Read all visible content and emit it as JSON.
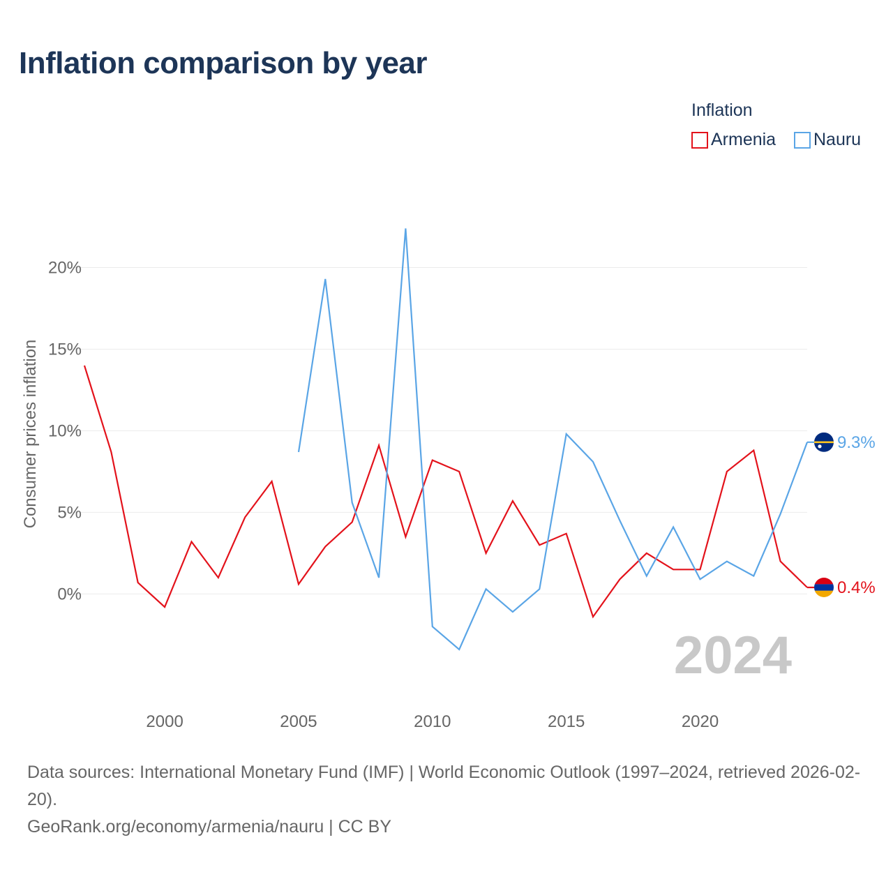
{
  "title": "Inflation comparison by year",
  "legend": {
    "title": "Inflation",
    "items": [
      {
        "label": "Armenia",
        "color": "#e3121b"
      },
      {
        "label": "Nauru",
        "color": "#5aa5e6"
      }
    ]
  },
  "current_year": "2024",
  "footer": {
    "sources": "Data sources: International Monetary Fund (IMF) | World Economic Outlook (1997–2024, retrieved 2026-02-20).",
    "attribution": "GeoRank.org/economy/armenia/nauru | CC BY"
  },
  "chart_data": {
    "type": "line",
    "title": "Inflation comparison by year",
    "xlabel": "",
    "ylabel": "Consumer prices inflation",
    "xlim": [
      1997,
      2024
    ],
    "ylim": [
      -5.5,
      24
    ],
    "x_ticks": [
      2000,
      2005,
      2010,
      2015,
      2020
    ],
    "y_ticks": [
      0,
      5,
      10,
      15,
      20
    ],
    "y_tick_labels": [
      "0%",
      "5%",
      "10%",
      "15%",
      "20%"
    ],
    "grid": true,
    "legend_position": "top-right",
    "series": [
      {
        "name": "Armenia",
        "color": "#e3121b",
        "flag_icon": "armenia-flag-icon",
        "end_label": "0.4%",
        "points": [
          [
            1997,
            14.0
          ],
          [
            1998,
            8.7
          ],
          [
            1999,
            0.7
          ],
          [
            2000,
            -0.8
          ],
          [
            2001,
            3.2
          ],
          [
            2002,
            1.0
          ],
          [
            2003,
            4.7
          ],
          [
            2004,
            6.9
          ],
          [
            2005,
            0.6
          ],
          [
            2006,
            2.9
          ],
          [
            2007,
            4.4
          ],
          [
            2008,
            9.1
          ],
          [
            2009,
            3.5
          ],
          [
            2010,
            8.2
          ],
          [
            2011,
            7.5
          ],
          [
            2012,
            2.5
          ],
          [
            2013,
            5.7
          ],
          [
            2014,
            3.0
          ],
          [
            2015,
            3.7
          ],
          [
            2016,
            -1.4
          ],
          [
            2017,
            0.9
          ],
          [
            2018,
            2.5
          ],
          [
            2019,
            1.5
          ],
          [
            2020,
            1.5
          ],
          [
            2021,
            7.5
          ],
          [
            2022,
            8.8
          ],
          [
            2023,
            2.0
          ],
          [
            2024,
            0.4
          ]
        ]
      },
      {
        "name": "Nauru",
        "color": "#5aa5e6",
        "flag_icon": "nauru-flag-icon",
        "end_label": "9.3%",
        "points": [
          [
            2005,
            8.7
          ],
          [
            2006,
            19.3
          ],
          [
            2007,
            5.6
          ],
          [
            2008,
            1.0
          ],
          [
            2009,
            22.4
          ],
          [
            2010,
            -2.0
          ],
          [
            2011,
            -3.4
          ],
          [
            2012,
            0.3
          ],
          [
            2013,
            -1.1
          ],
          [
            2014,
            0.3
          ],
          [
            2015,
            9.8
          ],
          [
            2016,
            8.1
          ],
          [
            2017,
            4.5
          ],
          [
            2018,
            1.1
          ],
          [
            2019,
            4.1
          ],
          [
            2020,
            0.9
          ],
          [
            2021,
            2.0
          ],
          [
            2022,
            1.1
          ],
          [
            2023,
            4.9
          ],
          [
            2024,
            9.3
          ]
        ]
      }
    ]
  }
}
